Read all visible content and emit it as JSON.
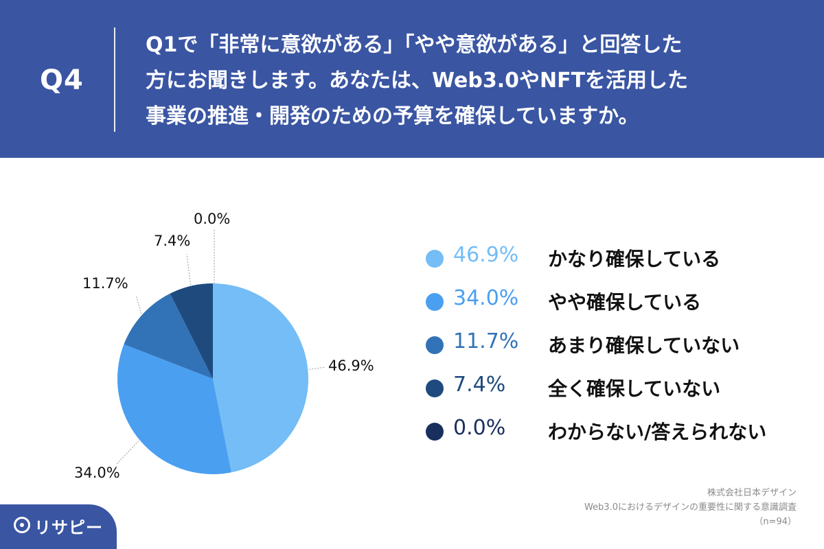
{
  "header": {
    "q_label": "Q4",
    "question_lines": [
      "Q1で「非常に意欲がある」「やや意欲がある」と回答した",
      "方にお聞きします。あなたは、Web3.0やNFTを活用した",
      "事業の推進・開発のための予算を確保していますか。"
    ]
  },
  "chart_data": {
    "type": "pie",
    "categories": [
      "かなり確保している",
      "やや確保している",
      "あまり確保していない",
      "全く確保していない",
      "わからない/答えられない"
    ],
    "values": [
      46.9,
      34.0,
      11.7,
      7.4,
      0.0
    ],
    "value_labels": [
      "46.9%",
      "34.0%",
      "11.7%",
      "7.4%",
      "0.0%"
    ],
    "colors": [
      "#74bdf6",
      "#4a9ff1",
      "#3272b6",
      "#1e4a7e",
      "#192f5d"
    ],
    "start_angle_deg": 0,
    "direction": "clockwise"
  },
  "legend": {
    "items": [
      {
        "pct": "46.9%",
        "label": "かなり確保している",
        "color": "#74bdf6"
      },
      {
        "pct": "34.0%",
        "label": "やや確保している",
        "color": "#4a9ff1"
      },
      {
        "pct": "11.7%",
        "label": "あまり確保していない",
        "color": "#3272b6"
      },
      {
        "pct": "7.4%",
        "label": "全く確保していない",
        "color": "#1e4a7e"
      },
      {
        "pct": "0.0%",
        "label": "わからない/答えられない",
        "color": "#192f5d"
      }
    ]
  },
  "credit": {
    "line1": "株式会社日本デザイン",
    "line2": "Web3.0におけるデザインの重要性に関する意識調査",
    "line3": "（n=94）"
  },
  "logo": {
    "icon": "search-pin-icon",
    "text": "リサピー"
  }
}
